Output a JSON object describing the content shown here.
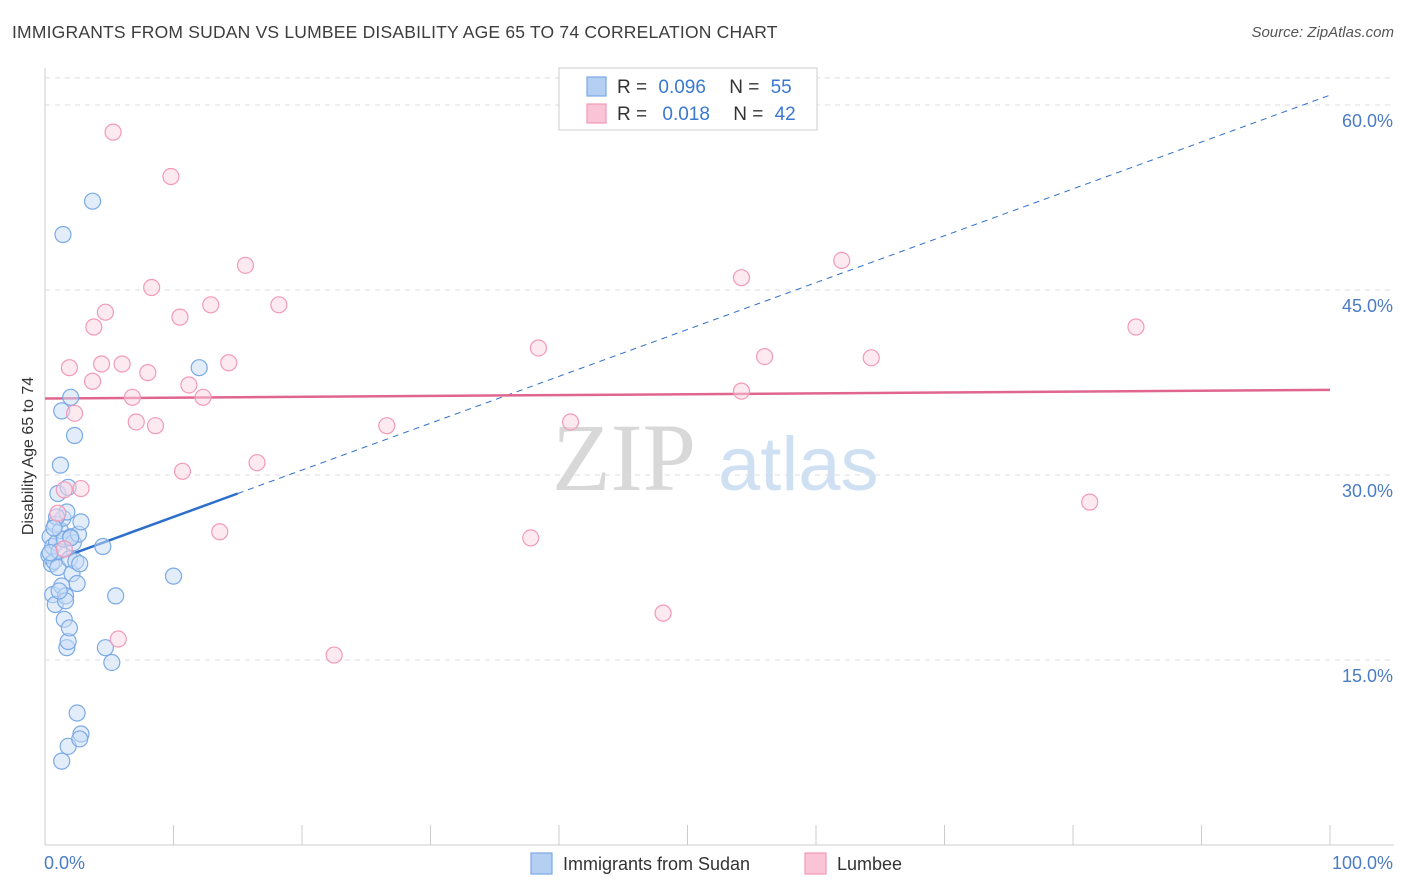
{
  "chart_data": {
    "type": "scatter",
    "title": "IMMIGRANTS FROM SUDAN VS LUMBEE DISABILITY AGE 65 TO 74 CORRELATION CHART",
    "source": "Source: ZipAtlas.com",
    "ylabel": "Disability Age 65 to 74",
    "xlabel": "",
    "xlim": [
      0,
      100
    ],
    "ylim": [
      0,
      63
    ],
    "x_tick_labels": [
      "0.0%",
      "100.0%"
    ],
    "y_ticks": [
      15,
      30,
      45,
      60
    ],
    "y_tick_labels": [
      "15.0%",
      "30.0%",
      "45.0%",
      "60.0%"
    ],
    "watermark": {
      "zip": "ZIP",
      "atlas": "atlas"
    },
    "legend": {
      "series": [
        {
          "r_label": "R =",
          "r_value": "0.096",
          "n_label": "N =",
          "n_value": "55"
        },
        {
          "r_label": "R =",
          "r_value": "0.018",
          "n_label": "N =",
          "n_value": "42"
        }
      ]
    },
    "series": [
      {
        "name": "Immigrants from Sudan",
        "color": "#7aaae6",
        "line_color": "#2e6fcc",
        "trend": {
          "x0": 0,
          "y0": 22.8,
          "x1": 15,
          "y1": 28.5,
          "x_dash_end": 100
        },
        "points": [
          [
            0.3,
            23.5
          ],
          [
            0.4,
            25.0
          ],
          [
            0.5,
            22.8
          ],
          [
            0.6,
            24.2
          ],
          [
            0.7,
            23.0
          ],
          [
            0.8,
            26.0
          ],
          [
            0.9,
            24.5
          ],
          [
            1.0,
            22.5
          ],
          [
            1.1,
            23.8
          ],
          [
            1.2,
            25.5
          ],
          [
            0.6,
            20.3
          ],
          [
            0.8,
            19.5
          ],
          [
            1.0,
            28.5
          ],
          [
            1.2,
            30.8
          ],
          [
            1.3,
            21.0
          ],
          [
            1.4,
            26.5
          ],
          [
            1.5,
            24.8
          ],
          [
            1.6,
            20.2
          ],
          [
            1.7,
            27.0
          ],
          [
            1.8,
            29.0
          ],
          [
            1.9,
            23.2
          ],
          [
            2.0,
            25.0
          ],
          [
            2.1,
            22.0
          ],
          [
            2.2,
            24.5
          ],
          [
            2.3,
            33.2
          ],
          [
            2.4,
            23.0
          ],
          [
            2.5,
            21.2
          ],
          [
            2.6,
            25.2
          ],
          [
            2.7,
            22.8
          ],
          [
            2.8,
            26.2
          ],
          [
            1.3,
            35.2
          ],
          [
            1.4,
            49.5
          ],
          [
            3.7,
            52.2
          ],
          [
            2.0,
            36.3
          ],
          [
            4.5,
            24.2
          ],
          [
            5.5,
            20.2
          ],
          [
            4.7,
            16.0
          ],
          [
            5.2,
            14.8
          ],
          [
            10.0,
            21.8
          ],
          [
            12.0,
            38.7
          ],
          [
            1.5,
            18.3
          ],
          [
            1.7,
            16.0
          ],
          [
            1.8,
            16.5
          ],
          [
            1.9,
            17.6
          ],
          [
            1.6,
            19.8
          ],
          [
            1.3,
            6.8
          ],
          [
            1.8,
            8.0
          ],
          [
            2.5,
            10.7
          ],
          [
            2.8,
            9.0
          ],
          [
            2.7,
            8.6
          ],
          [
            0.9,
            26.6
          ],
          [
            0.7,
            25.7
          ],
          [
            2.0,
            24.9
          ],
          [
            0.4,
            23.7
          ],
          [
            1.1,
            20.6
          ]
        ]
      },
      {
        "name": "Lumbee",
        "color": "#f29ab8",
        "line_color": "#e0668f",
        "trend": {
          "x0": 0,
          "y0": 36.2,
          "x1": 100,
          "y1": 36.9
        },
        "points": [
          [
            5.3,
            57.8
          ],
          [
            9.8,
            54.2
          ],
          [
            1.9,
            38.7
          ],
          [
            4.7,
            43.2
          ],
          [
            3.8,
            42.0
          ],
          [
            6.0,
            39.0
          ],
          [
            8.3,
            45.2
          ],
          [
            10.5,
            42.8
          ],
          [
            12.9,
            43.8
          ],
          [
            15.6,
            47.0
          ],
          [
            18.2,
            43.8
          ],
          [
            7.1,
            34.3
          ],
          [
            8.6,
            34.0
          ],
          [
            6.8,
            36.3
          ],
          [
            11.2,
            37.3
          ],
          [
            3.7,
            37.6
          ],
          [
            2.3,
            35.0
          ],
          [
            4.4,
            39.0
          ],
          [
            8.0,
            38.3
          ],
          [
            12.3,
            36.3
          ],
          [
            14.3,
            39.1
          ],
          [
            10.7,
            30.3
          ],
          [
            16.5,
            31.0
          ],
          [
            5.7,
            16.7
          ],
          [
            1.5,
            28.8
          ],
          [
            2.8,
            28.9
          ],
          [
            1.0,
            26.9
          ],
          [
            13.6,
            25.4
          ],
          [
            22.5,
            15.4
          ],
          [
            26.6,
            34.0
          ],
          [
            37.8,
            24.9
          ],
          [
            38.4,
            40.3
          ],
          [
            40.9,
            34.3
          ],
          [
            48.1,
            18.8
          ],
          [
            54.2,
            46.0
          ],
          [
            56.0,
            39.6
          ],
          [
            54.2,
            36.8
          ],
          [
            62.0,
            47.4
          ],
          [
            64.3,
            39.5
          ],
          [
            81.3,
            27.8
          ],
          [
            84.9,
            42.0
          ],
          [
            1.5,
            24.0
          ]
        ]
      }
    ]
  }
}
